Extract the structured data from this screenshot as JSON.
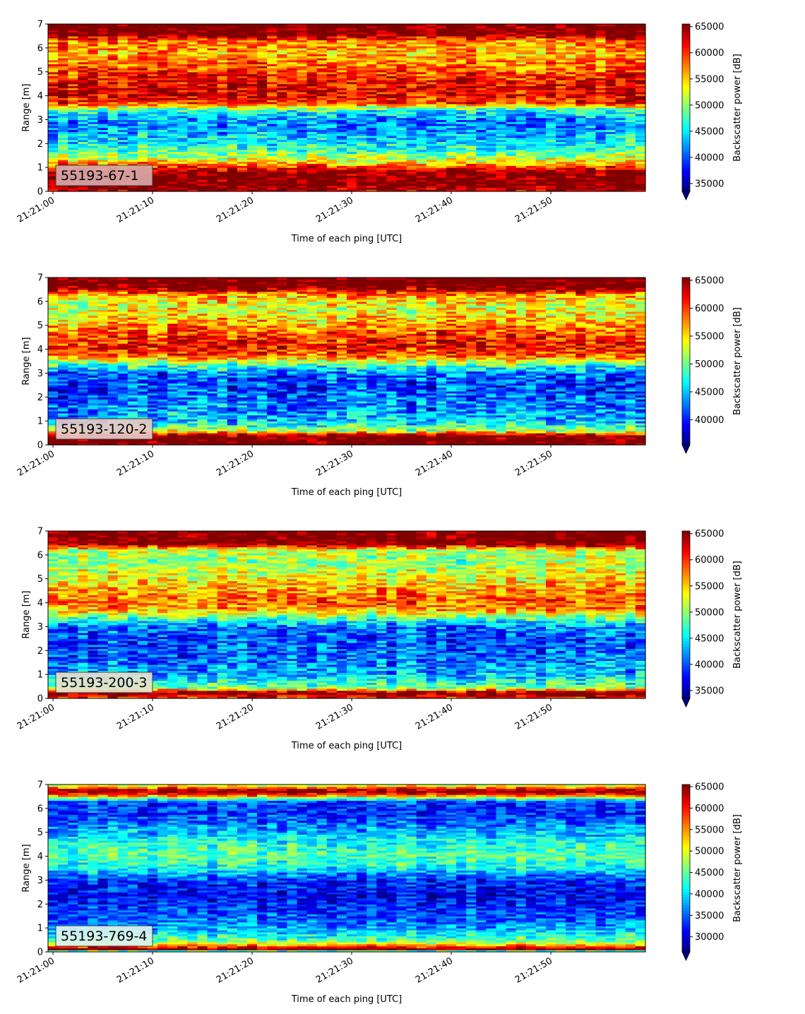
{
  "chart_data": [
    {
      "type": "heatmap",
      "label": "55193-67-1",
      "xlabel": "Time of each ping [UTC]",
      "ylabel": "Range [m]",
      "colorbar_label": "Backscatter power [dB]",
      "colormap": "jet",
      "x_ticks": [
        "21:21:00",
        "21:21:10",
        "21:21:20",
        "21:21:30",
        "21:21:40",
        "21:21:50"
      ],
      "y_ticks": [
        "0",
        "1",
        "2",
        "3",
        "4",
        "5",
        "6",
        "7"
      ],
      "xlim_seconds": [
        -0.5,
        59.5
      ],
      "ylim": [
        0,
        7
      ],
      "clim": [
        33500,
        65500
      ],
      "colorbar_ticks": [
        "35000",
        "40000",
        "45000",
        "50000",
        "55000",
        "60000",
        "65000"
      ],
      "label_box_color": "#d9a9a9",
      "profile": [
        {
          "r": 0.0,
          "v": 64000
        },
        {
          "r": 0.3,
          "v": 67000
        },
        {
          "r": 0.8,
          "v": 66000
        },
        {
          "r": 1.1,
          "v": 58000
        },
        {
          "r": 1.4,
          "v": 52000
        },
        {
          "r": 1.8,
          "v": 47000
        },
        {
          "r": 2.5,
          "v": 43000
        },
        {
          "r": 3.0,
          "v": 42000
        },
        {
          "r": 3.4,
          "v": 47000
        },
        {
          "r": 3.7,
          "v": 60000
        },
        {
          "r": 4.1,
          "v": 63000
        },
        {
          "r": 4.6,
          "v": 62000
        },
        {
          "r": 5.2,
          "v": 59000
        },
        {
          "r": 5.8,
          "v": 56000
        },
        {
          "r": 6.3,
          "v": 58000
        },
        {
          "r": 6.6,
          "v": 67000
        },
        {
          "r": 7.0,
          "v": 67000
        }
      ]
    },
    {
      "type": "heatmap",
      "label": "55193-120-2",
      "xlabel": "Time of each ping [UTC]",
      "ylabel": "Range [m]",
      "colorbar_label": "Backscatter power [dB]",
      "colormap": "jet",
      "x_ticks": [
        "21:21:00",
        "21:21:10",
        "21:21:20",
        "21:21:30",
        "21:21:40",
        "21:21:50"
      ],
      "y_ticks": [
        "0",
        "1",
        "2",
        "3",
        "4",
        "5",
        "6",
        "7"
      ],
      "xlim_seconds": [
        -0.5,
        59.5
      ],
      "ylim": [
        0,
        7
      ],
      "clim": [
        35500,
        65500
      ],
      "colorbar_ticks": [
        "40000",
        "45000",
        "50000",
        "55000",
        "60000",
        "65000"
      ],
      "label_box_color": "#e8c8c8",
      "profile": [
        {
          "r": 0.0,
          "v": 67000
        },
        {
          "r": 0.4,
          "v": 66000
        },
        {
          "r": 0.6,
          "v": 52000
        },
        {
          "r": 1.0,
          "v": 45000
        },
        {
          "r": 1.6,
          "v": 43000
        },
        {
          "r": 2.4,
          "v": 41000
        },
        {
          "r": 3.0,
          "v": 42000
        },
        {
          "r": 3.3,
          "v": 48000
        },
        {
          "r": 3.7,
          "v": 58000
        },
        {
          "r": 4.1,
          "v": 62000
        },
        {
          "r": 4.6,
          "v": 60000
        },
        {
          "r": 5.2,
          "v": 56000
        },
        {
          "r": 5.8,
          "v": 53000
        },
        {
          "r": 6.3,
          "v": 57000
        },
        {
          "r": 6.6,
          "v": 67000
        },
        {
          "r": 7.0,
          "v": 67000
        }
      ]
    },
    {
      "type": "heatmap",
      "label": "55193-200-3",
      "xlabel": "Time of each ping [UTC]",
      "ylabel": "Range [m]",
      "colorbar_label": "Backscatter power [dB]",
      "colormap": "jet",
      "x_ticks": [
        "21:21:00",
        "21:21:10",
        "21:21:20",
        "21:21:30",
        "21:21:40",
        "21:21:50"
      ],
      "y_ticks": [
        "0",
        "1",
        "2",
        "3",
        "4",
        "5",
        "6",
        "7"
      ],
      "xlim_seconds": [
        -0.5,
        59.5
      ],
      "ylim": [
        0,
        7
      ],
      "clim": [
        33500,
        65500
      ],
      "colorbar_ticks": [
        "35000",
        "40000",
        "45000",
        "50000",
        "55000",
        "60000",
        "65000"
      ],
      "label_box_color": "#e6e2cf",
      "profile": [
        {
          "r": 0.0,
          "v": 60000
        },
        {
          "r": 0.25,
          "v": 67000
        },
        {
          "r": 0.45,
          "v": 50000
        },
        {
          "r": 0.9,
          "v": 44000
        },
        {
          "r": 1.6,
          "v": 41000
        },
        {
          "r": 2.4,
          "v": 40000
        },
        {
          "r": 3.0,
          "v": 41000
        },
        {
          "r": 3.3,
          "v": 47000
        },
        {
          "r": 3.7,
          "v": 56000
        },
        {
          "r": 4.1,
          "v": 59000
        },
        {
          "r": 4.6,
          "v": 56000
        },
        {
          "r": 5.2,
          "v": 53000
        },
        {
          "r": 5.8,
          "v": 50000
        },
        {
          "r": 6.2,
          "v": 52000
        },
        {
          "r": 6.5,
          "v": 67000
        },
        {
          "r": 7.0,
          "v": 67000
        }
      ]
    },
    {
      "type": "heatmap",
      "label": "55193-769-4",
      "xlabel": "Time of each ping [UTC]",
      "ylabel": "Range [m]",
      "colorbar_label": "Backscatter power [dB]",
      "colormap": "jet",
      "x_ticks": [
        "21:21:00",
        "21:21:10",
        "21:21:20",
        "21:21:30",
        "21:21:40",
        "21:21:50"
      ],
      "y_ticks": [
        "0",
        "1",
        "2",
        "3",
        "4",
        "5",
        "6",
        "7"
      ],
      "xlim_seconds": [
        -0.5,
        59.5
      ],
      "ylim": [
        0,
        7
      ],
      "clim": [
        26500,
        65500
      ],
      "colorbar_ticks": [
        "30000",
        "35000",
        "40000",
        "45000",
        "50000",
        "55000",
        "60000",
        "65000"
      ],
      "label_box_color": "#dcf2ef",
      "profile": [
        {
          "r": 0.0,
          "v": 32000
        },
        {
          "r": 0.12,
          "v": 66000
        },
        {
          "r": 0.3,
          "v": 54000
        },
        {
          "r": 0.5,
          "v": 44000
        },
        {
          "r": 1.0,
          "v": 38000
        },
        {
          "r": 1.6,
          "v": 34000
        },
        {
          "r": 2.4,
          "v": 31000
        },
        {
          "r": 3.0,
          "v": 33000
        },
        {
          "r": 3.5,
          "v": 41000
        },
        {
          "r": 4.0,
          "v": 45000
        },
        {
          "r": 4.6,
          "v": 42000
        },
        {
          "r": 5.2,
          "v": 37000
        },
        {
          "r": 5.8,
          "v": 33000
        },
        {
          "r": 6.3,
          "v": 34000
        },
        {
          "r": 6.6,
          "v": 60000
        },
        {
          "r": 6.75,
          "v": 66000
        },
        {
          "r": 7.0,
          "v": 48000
        }
      ]
    }
  ]
}
